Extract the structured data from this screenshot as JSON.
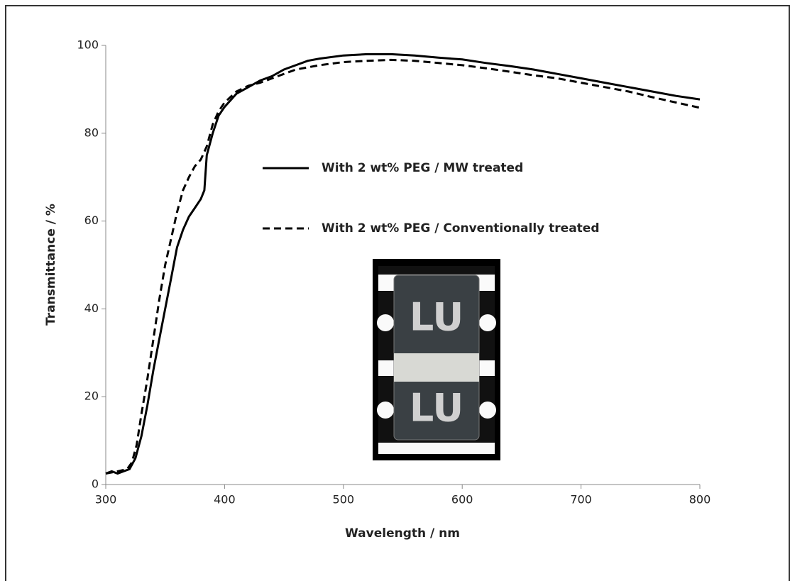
{
  "chart_data": {
    "type": "line",
    "x_label": "Wavelength / nm",
    "y_label": "Transmittance / %",
    "xlim": [
      300,
      800
    ],
    "ylim": [
      0,
      100
    ],
    "xticks": [
      300,
      400,
      500,
      600,
      700,
      800
    ],
    "yticks": [
      0,
      20,
      40,
      60,
      80,
      100
    ],
    "grid": false,
    "annotations": [
      "LU",
      "LU"
    ],
    "series": [
      {
        "name": "With 2 wt% PEG / MW treated",
        "color": "#000000",
        "style": "solid",
        "x": [
          300,
          305,
          310,
          315,
          320,
          325,
          330,
          335,
          340,
          345,
          350,
          355,
          360,
          365,
          370,
          375,
          380,
          383,
          385,
          390,
          395,
          400,
          410,
          420,
          430,
          440,
          450,
          460,
          470,
          480,
          500,
          520,
          540,
          560,
          580,
          600,
          620,
          640,
          660,
          680,
          700,
          720,
          740,
          760,
          780,
          800
        ],
        "values": [
          2.5,
          3,
          2.5,
          3,
          3.5,
          6,
          11,
          18,
          26,
          33,
          40,
          47,
          54,
          58,
          61,
          63,
          65,
          67,
          75,
          80,
          84,
          86,
          89,
          90.5,
          92,
          93,
          94.5,
          95.5,
          96.5,
          97,
          97.7,
          98,
          98,
          97.7,
          97.2,
          96.8,
          96,
          95.3,
          94.5,
          93.5,
          92.5,
          91.5,
          90.5,
          89.5,
          88.5,
          87.7
        ]
      },
      {
        "name": "With 2 wt% PEG / Conventionally treated",
        "color": "#000000",
        "style": "dashed",
        "x": [
          300,
          310,
          318,
          322,
          326,
          330,
          335,
          340,
          345,
          350,
          355,
          360,
          365,
          370,
          375,
          380,
          385,
          390,
          395,
          400,
          410,
          420,
          430,
          440,
          450,
          460,
          480,
          500,
          520,
          540,
          560,
          580,
          600,
          620,
          640,
          660,
          680,
          700,
          720,
          740,
          760,
          780,
          800
        ],
        "values": [
          2.5,
          3,
          3.5,
          5,
          9,
          16,
          24,
          33,
          42,
          50,
          56,
          62,
          67,
          70,
          72.5,
          74,
          77,
          82,
          85,
          87,
          89.5,
          90.8,
          91.5,
          92.5,
          93.5,
          94.5,
          95.5,
          96.2,
          96.5,
          96.7,
          96.5,
          96,
          95.5,
          94.8,
          94,
          93.2,
          92.5,
          91.5,
          90.5,
          89.5,
          88.2,
          87,
          85.8
        ]
      }
    ]
  }
}
